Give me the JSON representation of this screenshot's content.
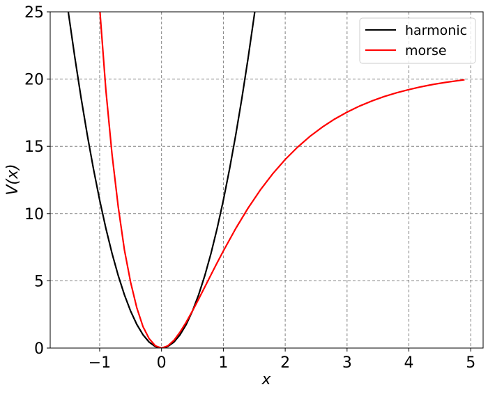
{
  "chart_data": {
    "type": "line",
    "title": "",
    "xlabel": "x",
    "ylabel": "V(x)",
    "xlim": [
      -1.8,
      5.2
    ],
    "ylim": [
      0,
      25
    ],
    "xticks": [
      -1,
      0,
      1,
      2,
      3,
      4,
      5
    ],
    "xtick_labels": [
      "−1",
      "0",
      "1",
      "2",
      "3",
      "4",
      "5"
    ],
    "yticks": [
      0,
      5,
      10,
      15,
      20,
      25
    ],
    "ytick_labels": [
      "0",
      "5",
      "10",
      "15",
      "20",
      "25"
    ],
    "grid": true,
    "legend_position": "top-right",
    "series": [
      {
        "name": "harmonic",
        "color": "#000000",
        "x": [
          -1.6,
          -1.5,
          -1.4,
          -1.3,
          -1.2,
          -1.1,
          -1.0,
          -0.9,
          -0.8,
          -0.7,
          -0.6,
          -0.5,
          -0.4,
          -0.3,
          -0.2,
          -0.1,
          0.0,
          0.1,
          0.2,
          0.3,
          0.4,
          0.5,
          0.6,
          0.7,
          0.8,
          0.9,
          1.0,
          1.1,
          1.2,
          1.3,
          1.4,
          1.5,
          1.6
        ],
        "y": [
          28.16,
          24.75,
          21.56,
          18.59,
          15.84,
          13.31,
          11.0,
          8.91,
          7.04,
          5.39,
          3.96,
          2.75,
          1.76,
          0.99,
          0.44,
          0.11,
          0.0,
          0.11,
          0.44,
          0.99,
          1.76,
          2.75,
          3.96,
          5.39,
          7.04,
          8.91,
          11.0,
          13.31,
          15.84,
          18.59,
          21.56,
          24.75,
          28.16
        ]
      },
      {
        "name": "morse",
        "color": "#ff0000",
        "x": [
          -1.1,
          -1.0,
          -0.9,
          -0.8,
          -0.7,
          -0.6,
          -0.5,
          -0.4,
          -0.3,
          -0.2,
          -0.1,
          0.0,
          0.1,
          0.2,
          0.3,
          0.4,
          0.5,
          0.6,
          0.7,
          0.8,
          0.9,
          1.0,
          1.2,
          1.4,
          1.6,
          1.8,
          2.0,
          2.2,
          2.4,
          2.6,
          2.8,
          3.0,
          3.2,
          3.4,
          3.6,
          3.8,
          4.0,
          4.2,
          4.4,
          4.6,
          4.9
        ],
        "y": [
          31.0,
          25.3,
          19.2,
          14.4,
          10.5,
          7.3,
          4.9,
          3.0,
          1.6,
          0.7,
          0.17,
          0.0,
          0.16,
          0.57,
          1.19,
          1.93,
          2.76,
          3.64,
          4.54,
          5.45,
          6.35,
          7.22,
          8.89,
          10.41,
          11.77,
          12.97,
          14.02,
          14.94,
          15.74,
          16.43,
          17.03,
          17.54,
          17.99,
          18.37,
          18.7,
          18.98,
          19.22,
          19.43,
          19.61,
          19.76,
          19.95
        ]
      }
    ]
  }
}
